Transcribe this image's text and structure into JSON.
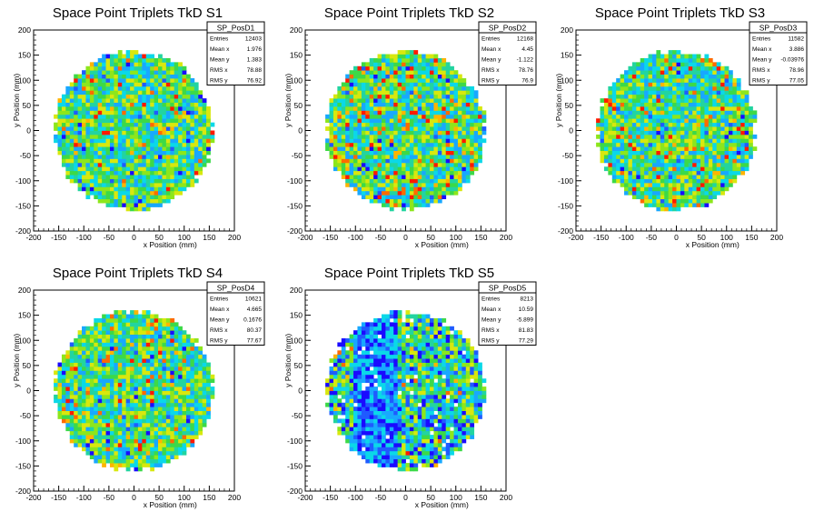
{
  "panels": [
    {
      "title": "Space Point Triplets TkD S1",
      "stats_name": "SP_PosD1",
      "stats": [
        [
          "Entries",
          "12403"
        ],
        [
          "Mean x",
          "1.976"
        ],
        [
          "Mean y",
          "1.383"
        ],
        [
          "RMS x",
          "78.88"
        ],
        [
          "RMS y",
          "76.92"
        ]
      ]
    },
    {
      "title": "Space Point Triplets TkD S2",
      "stats_name": "SP_PosD2",
      "stats": [
        [
          "Entries",
          "12168"
        ],
        [
          "Mean x",
          "4.45"
        ],
        [
          "Mean y",
          "-1.122"
        ],
        [
          "RMS x",
          "78.76"
        ],
        [
          "RMS y",
          "76.9"
        ]
      ]
    },
    {
      "title": "Space Point Triplets TkD S3",
      "stats_name": "SP_PosD3",
      "stats": [
        [
          "Entries",
          "11582"
        ],
        [
          "Mean x",
          "3.886"
        ],
        [
          "Mean y",
          "-0.03976"
        ],
        [
          "RMS x",
          "78.96"
        ],
        [
          "RMS y",
          "77.05"
        ]
      ]
    },
    {
      "title": "Space Point Triplets TkD S4",
      "stats_name": "SP_PosD4",
      "stats": [
        [
          "Entries",
          "10621"
        ],
        [
          "Mean x",
          "4.665"
        ],
        [
          "Mean y",
          "0.1676"
        ],
        [
          "RMS x",
          "80.37"
        ],
        [
          "RMS y",
          "77.67"
        ]
      ]
    },
    {
      "title": "Space Point Triplets TkD S5",
      "stats_name": "SP_PosD5",
      "stats": [
        [
          "Entries",
          "8213"
        ],
        [
          "Mean x",
          "10.59"
        ],
        [
          "Mean y",
          "-5.899"
        ],
        [
          "RMS x",
          "81.83"
        ],
        [
          "RMS y",
          "77.29"
        ]
      ]
    }
  ],
  "chart_data": [
    {
      "type": "heatmap",
      "title": "Space Point Triplets TkD S1",
      "xlabel": "x Position (mm)",
      "ylabel": "y Position (mm)",
      "xlim": [
        -200,
        200
      ],
      "ylim": [
        -200,
        200
      ],
      "xticks": [
        -200,
        -150,
        -100,
        -50,
        0,
        50,
        100,
        150,
        200
      ],
      "yticks": [
        -200,
        -150,
        -100,
        -50,
        0,
        50,
        100,
        150,
        200
      ],
      "footprint": "disc",
      "radius": 160,
      "bin_width": 8,
      "seed": 11,
      "hot_fraction": 0.05,
      "cold_band": null
    },
    {
      "type": "heatmap",
      "title": "Space Point Triplets TkD S2",
      "xlabel": "x Position (mm)",
      "ylabel": "y Position (mm)",
      "xlim": [
        -200,
        200
      ],
      "ylim": [
        -200,
        200
      ],
      "xticks": [
        -200,
        -150,
        -100,
        -50,
        0,
        50,
        100,
        150,
        200
      ],
      "yticks": [
        -200,
        -150,
        -100,
        -50,
        0,
        50,
        100,
        150,
        200
      ],
      "footprint": "disc",
      "radius": 160,
      "bin_width": 8,
      "seed": 23,
      "hot_fraction": 0.12,
      "cold_band": null
    },
    {
      "type": "heatmap",
      "title": "Space Point Triplets TkD S3",
      "xlabel": "x Position (mm)",
      "ylabel": "y Position (mm)",
      "xlim": [
        -200,
        200
      ],
      "ylim": [
        -200,
        200
      ],
      "xticks": [
        -200,
        -150,
        -100,
        -50,
        0,
        50,
        100,
        150,
        200
      ],
      "yticks": [
        -200,
        -150,
        -100,
        -50,
        0,
        50,
        100,
        150,
        200
      ],
      "footprint": "disc",
      "radius": 160,
      "bin_width": 8,
      "seed": 37,
      "hot_fraction": 0.08,
      "cold_band": null
    },
    {
      "type": "heatmap",
      "title": "Space Point Triplets TkD S4",
      "xlabel": "x Position (mm)",
      "ylabel": "y Position (mm)",
      "xlim": [
        -200,
        200
      ],
      "ylim": [
        -200,
        200
      ],
      "xticks": [
        -200,
        -150,
        -100,
        -50,
        0,
        50,
        100,
        150,
        200
      ],
      "yticks": [
        -200,
        -150,
        -100,
        -50,
        0,
        50,
        100,
        150,
        200
      ],
      "footprint": "disc",
      "radius": 160,
      "bin_width": 8,
      "seed": 51,
      "hot_fraction": 0.06,
      "cold_band": null
    },
    {
      "type": "heatmap",
      "title": "Space Point Triplets TkD S5",
      "xlabel": "x Position (mm)",
      "ylabel": "y Position (mm)",
      "xlim": [
        -200,
        200
      ],
      "ylim": [
        -200,
        200
      ],
      "xticks": [
        -200,
        -150,
        -100,
        -50,
        0,
        50,
        100,
        150,
        200
      ],
      "yticks": [
        -200,
        -150,
        -100,
        -50,
        0,
        50,
        100,
        150,
        200
      ],
      "footprint": "disc",
      "radius": 160,
      "bin_width": 8,
      "seed": 73,
      "hot_fraction": 0.03,
      "cold_band": [
        -100,
        -20
      ]
    }
  ],
  "colors": {
    "palette": [
      "#1a0bff",
      "#1f5bff",
      "#18a8ff",
      "#0bd8e8",
      "#22d4a0",
      "#3cd948",
      "#8de61c",
      "#d8e80e",
      "#ffb400",
      "#ff6a00",
      "#ff1a00"
    ],
    "frame": "#000000",
    "background": "#ffffff"
  }
}
